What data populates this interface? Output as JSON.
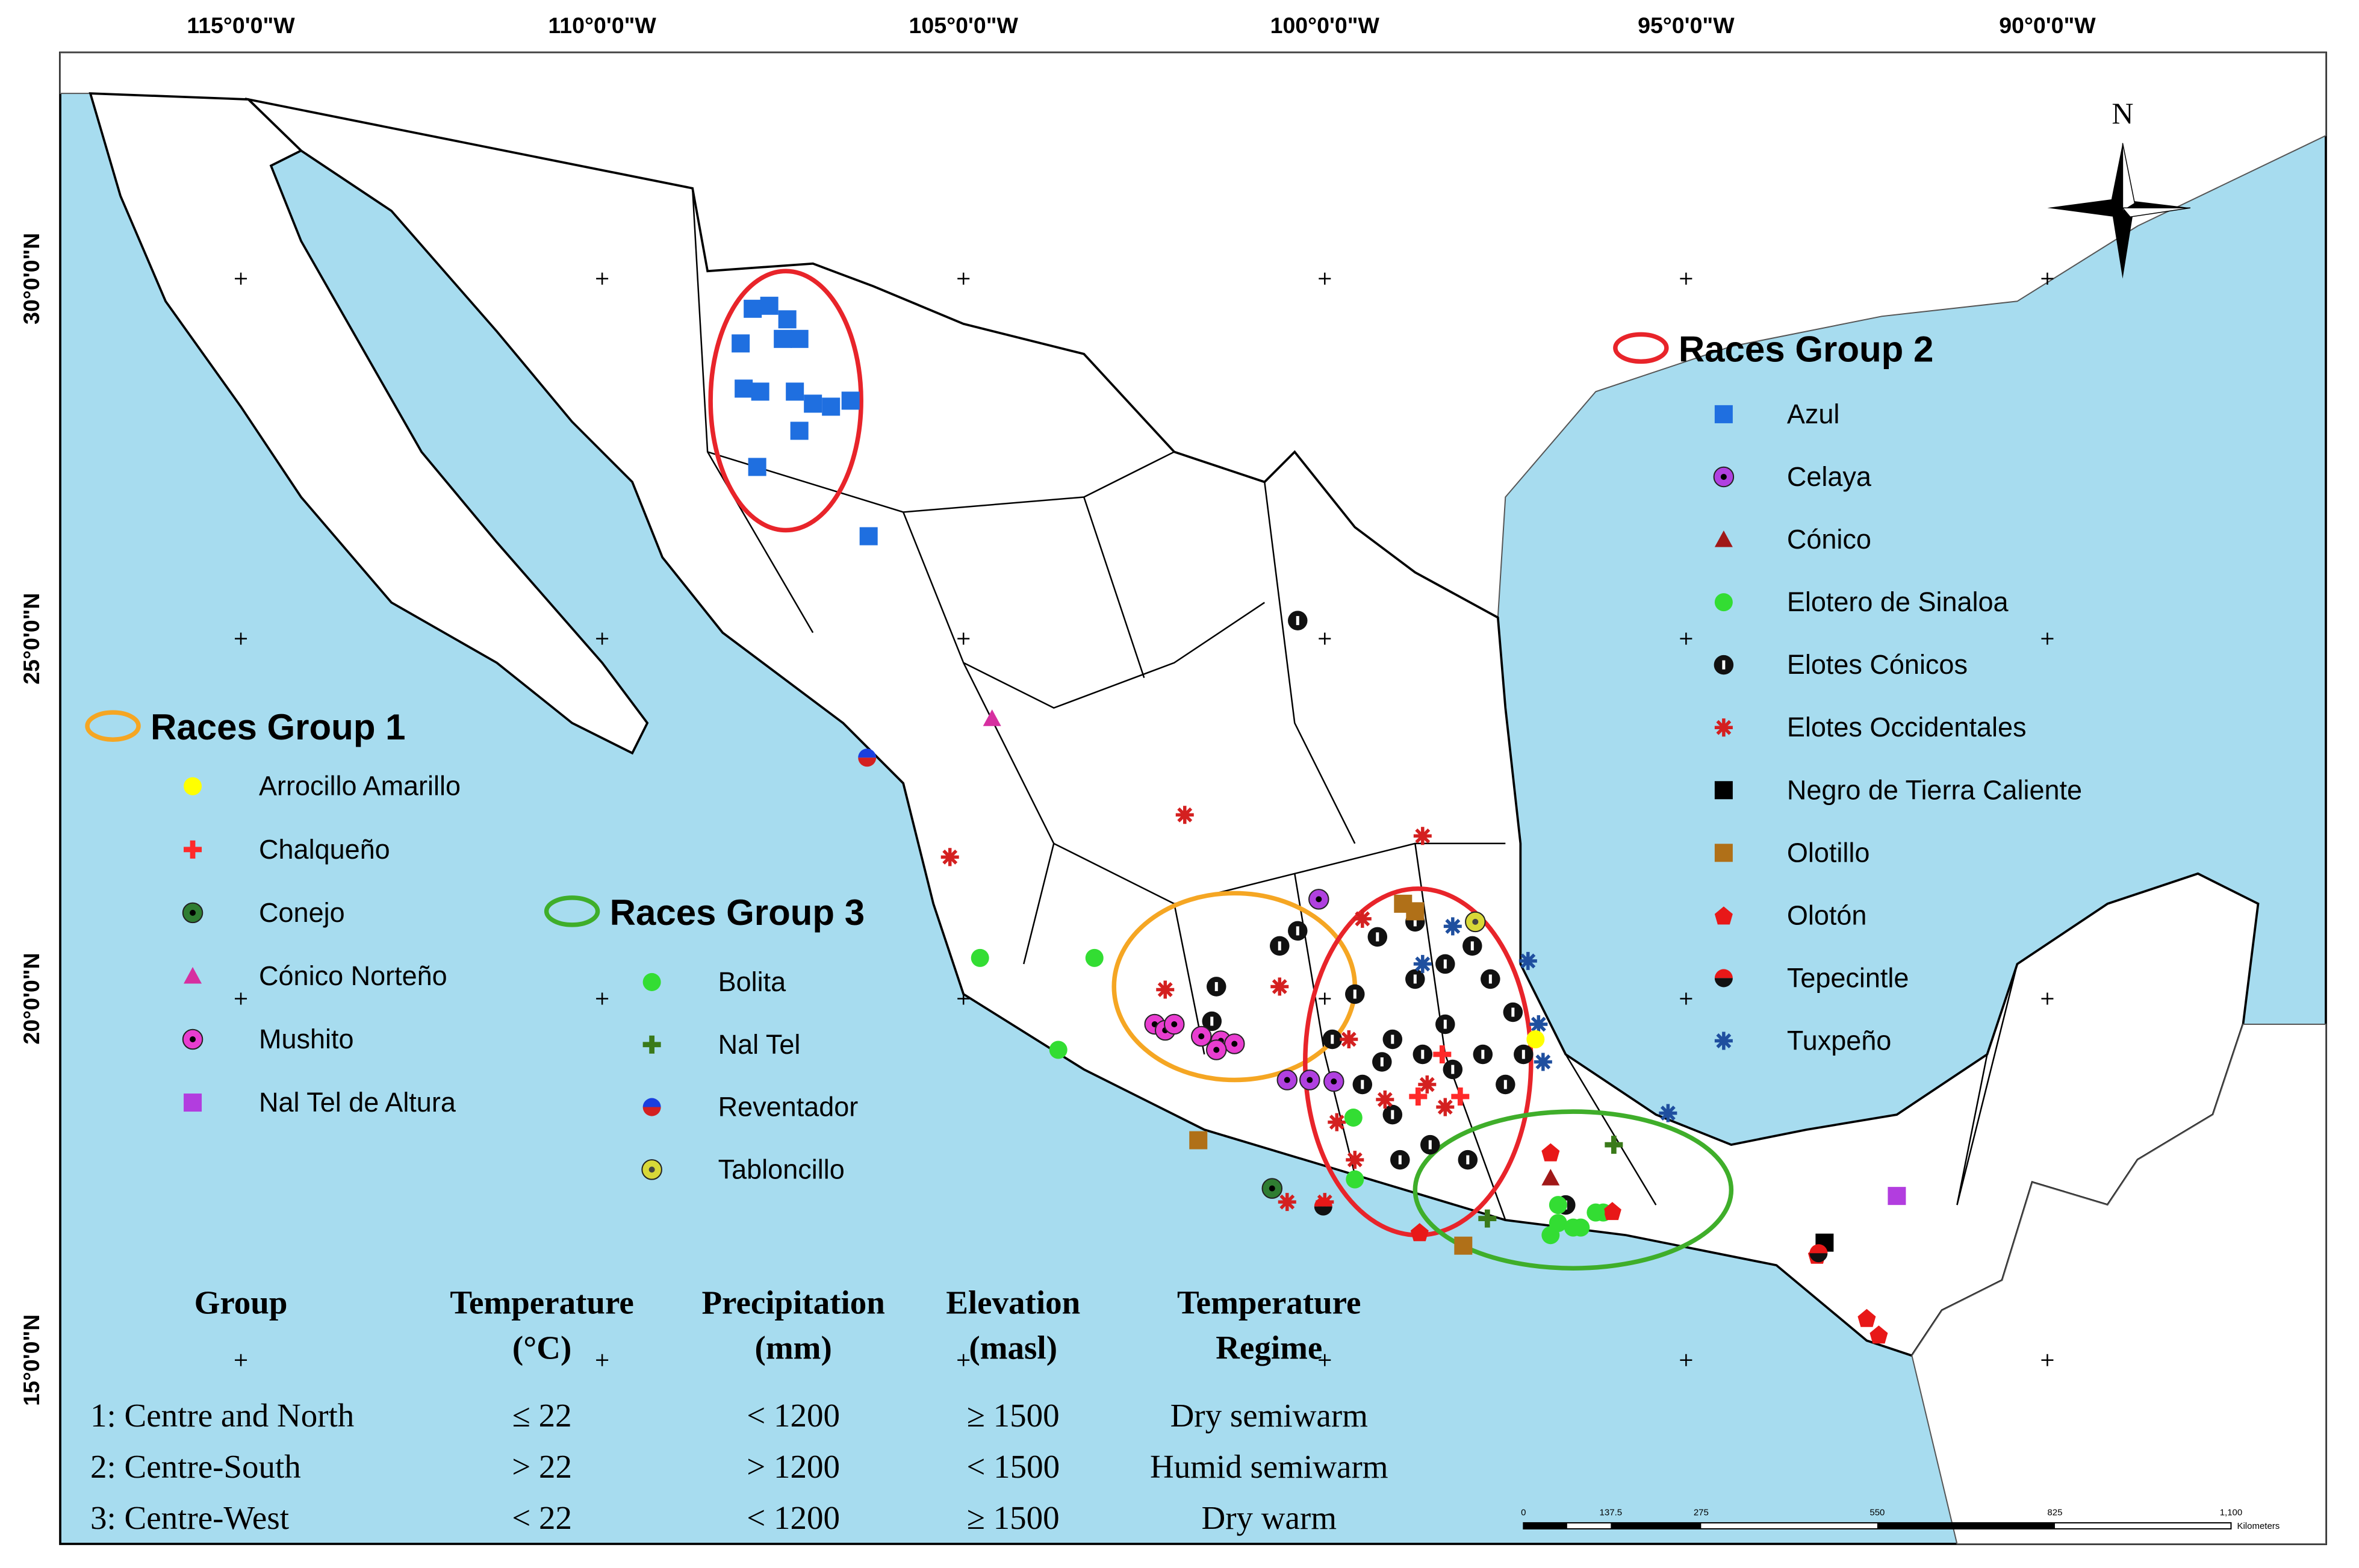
{
  "map": {
    "lon_labels": [
      "115°0'0\"W",
      "110°0'0\"W",
      "105°0'0\"W",
      "100°0'0\"W",
      "95°0'0\"W",
      "90°0'0\"W"
    ],
    "lat_labels": [
      "30°0'0\"N",
      "25°0'0\"N",
      "20°0'0\"N",
      "15°0'0\"N"
    ],
    "north": "N"
  },
  "legend": {
    "group1": {
      "title": "Races Group 1",
      "items": [
        "Arrocillo Amarillo",
        "Chalqueño",
        "Conejo",
        "Cónico Norteño",
        "Mushito",
        "Nal Tel de Altura"
      ]
    },
    "group2": {
      "title": "Races Group 2",
      "items": [
        "Azul",
        "Celaya",
        "Cónico",
        "Elotero de Sinaloa",
        "Elotes Cónicos",
        "Elotes Occidentales",
        "Negro de Tierra Caliente",
        "Olotillo",
        "Olotón",
        "Tepecintle",
        "Tuxpeño"
      ]
    },
    "group3": {
      "title": "Races Group 3",
      "items": [
        "Bolita",
        "Nal Tel",
        "Reventador",
        "Tabloncillo"
      ]
    }
  },
  "table": {
    "header": [
      [
        "Group"
      ],
      [
        "Temperature",
        "(°C)"
      ],
      [
        "Precipitation",
        "(mm)"
      ],
      [
        "Elevation",
        "(masl)"
      ],
      [
        "Temperature",
        "Regime"
      ]
    ],
    "rows": [
      [
        "1: Centre and North",
        "≤ 22",
        "< 1200",
        "≥ 1500",
        "Dry semiwarm"
      ],
      [
        "2: Centre-South",
        "> 22",
        "> 1200",
        "< 1500",
        "Humid semiwarm"
      ],
      [
        "3: Centre-West",
        "< 22",
        "< 1200",
        "≥ 1500",
        "Dry warm"
      ]
    ]
  },
  "scale_bar": {
    "labels": [
      "0",
      "137.5",
      "275",
      "550",
      "825",
      "1,100"
    ],
    "unit": "Kilometers"
  }
}
